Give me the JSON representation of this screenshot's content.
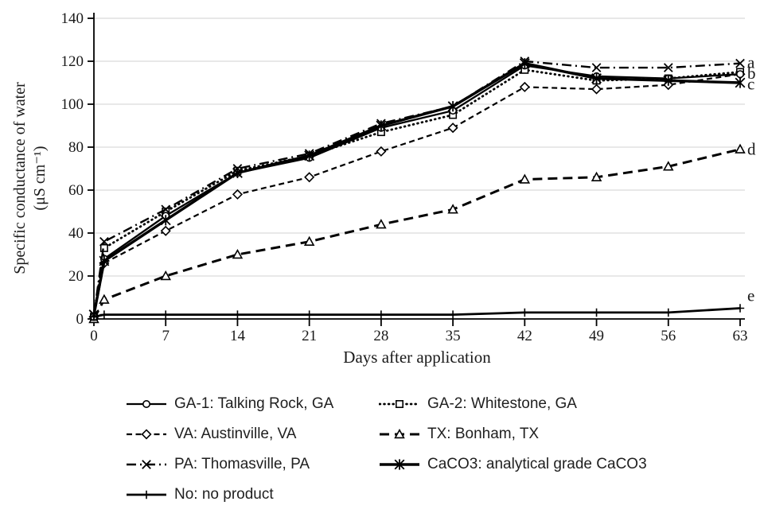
{
  "chart_data": {
    "type": "line",
    "title": "",
    "xlabel": "Days after application",
    "ylabel": "Specific conductance of water (μS cm⁻¹)",
    "ylabel_lines": [
      "Specific conductance of water",
      "(μS cm⁻¹)"
    ],
    "x": [
      0,
      1,
      7,
      14,
      21,
      28,
      35,
      42,
      49,
      56,
      63
    ],
    "x_ticks": [
      "0",
      "7",
      "14",
      "21",
      "28",
      "35",
      "42",
      "49",
      "56",
      "63"
    ],
    "y_ticks": [
      "0",
      "20",
      "40",
      "60",
      "80",
      "100",
      "120",
      "140"
    ],
    "xlim": [
      0,
      63
    ],
    "ylim": [
      0,
      140
    ],
    "grid": "horizontal-only",
    "gridline_color": "#d9d9d9",
    "line_color": "#000000",
    "legend_position": "bottom-two-columns",
    "series": [
      {
        "name": "GA-1: Talking Rock, GA",
        "marker": "circle",
        "line": "solid",
        "values": [
          1,
          28,
          48,
          68,
          75,
          89,
          97,
          118,
          113,
          112,
          114
        ]
      },
      {
        "name": "GA-2: Whitestone, GA",
        "marker": "square",
        "line": "dotted",
        "values": [
          1,
          33,
          50,
          69,
          76,
          87,
          95,
          116,
          111,
          112,
          115
        ]
      },
      {
        "name": "VA: Austinville, VA",
        "marker": "diamond",
        "line": "dash",
        "values": [
          1,
          26,
          41,
          58,
          66,
          78,
          89,
          108,
          107,
          109,
          114
        ]
      },
      {
        "name": "TX: Bonham, TX",
        "marker": "triangle",
        "line": "longdash",
        "values": [
          0,
          9,
          20,
          30,
          36,
          44,
          51,
          65,
          66,
          71,
          79
        ]
      },
      {
        "name": "PA: Thomasville, PA",
        "marker": "x",
        "line": "dashdot",
        "values": [
          2,
          36,
          51,
          70,
          77,
          91,
          99,
          120,
          117,
          117,
          119
        ]
      },
      {
        "name": "CaCO3: analytical grade CaCO3",
        "marker": "asterisk",
        "line": "solid-thick",
        "values": [
          2,
          27,
          46,
          68,
          76,
          90,
          99,
          119,
          112,
          111,
          110
        ]
      },
      {
        "name": "No: no product",
        "marker": "plus",
        "line": "solid-medium",
        "values": [
          1,
          2,
          2,
          2,
          2,
          2,
          2,
          3,
          3,
          3,
          5
        ]
      }
    ],
    "end_labels": [
      {
        "text": "a",
        "day": 63,
        "value": 119.5
      },
      {
        "text": "b",
        "day": 63,
        "value": 114.5
      },
      {
        "text": "c",
        "day": 63,
        "value": 109.5
      },
      {
        "text": "d",
        "day": 63,
        "value": 79
      },
      {
        "text": "e",
        "day": 63,
        "value": 11
      }
    ]
  }
}
